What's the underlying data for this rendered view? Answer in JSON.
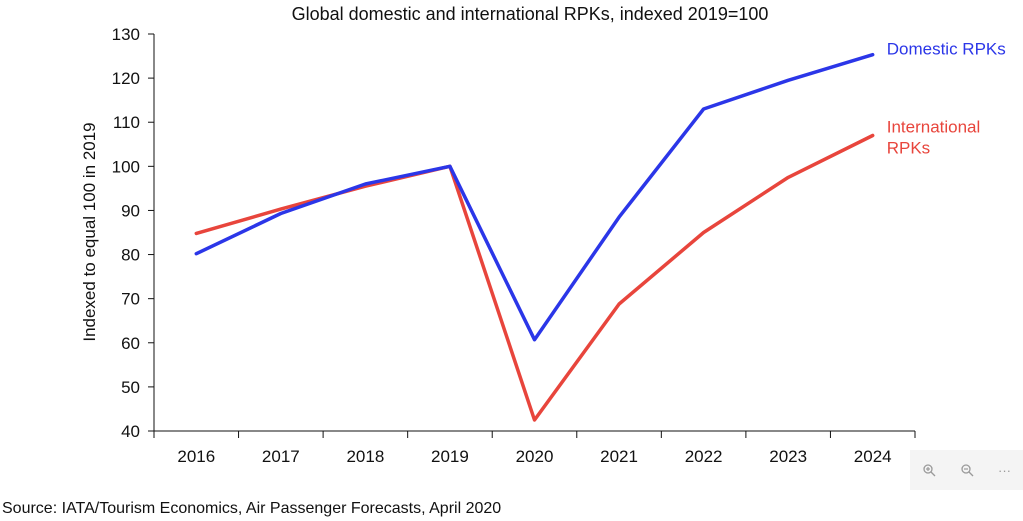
{
  "chart_data": {
    "type": "line",
    "title": "Global domestic and international RPKs, indexed 2019=100",
    "xlabel": "",
    "ylabel": "Indexed to equal 100 in 2019",
    "categories": [
      "2016",
      "2017",
      "2018",
      "2019",
      "2020",
      "2021",
      "2022",
      "2023",
      "2024"
    ],
    "ylim": [
      40,
      130
    ],
    "yticks": [
      40,
      50,
      60,
      70,
      80,
      90,
      100,
      110,
      120,
      130
    ],
    "grid": false,
    "series": [
      {
        "name": "Domestic RPKs",
        "label_lines": [
          "Domestic RPKs"
        ],
        "color": "#2b36e8",
        "values": [
          80.2,
          89.3,
          96.0,
          100.0,
          60.7,
          88.5,
          113.0,
          119.5,
          125.3
        ]
      },
      {
        "name": "International RPKs",
        "label_lines": [
          "International",
          "RPKs"
        ],
        "color": "#e8453c",
        "values": [
          84.8,
          90.3,
          95.5,
          100.0,
          42.5,
          68.8,
          85.0,
          97.5,
          107.0
        ]
      }
    ]
  },
  "source": "Source: IATA/Tourism Economics, Air Passenger Forecasts, April 2020",
  "toolbar": {
    "zoom_in_icon": "zoom-in-icon",
    "zoom_out_icon": "zoom-out-icon",
    "more_label": "···"
  }
}
